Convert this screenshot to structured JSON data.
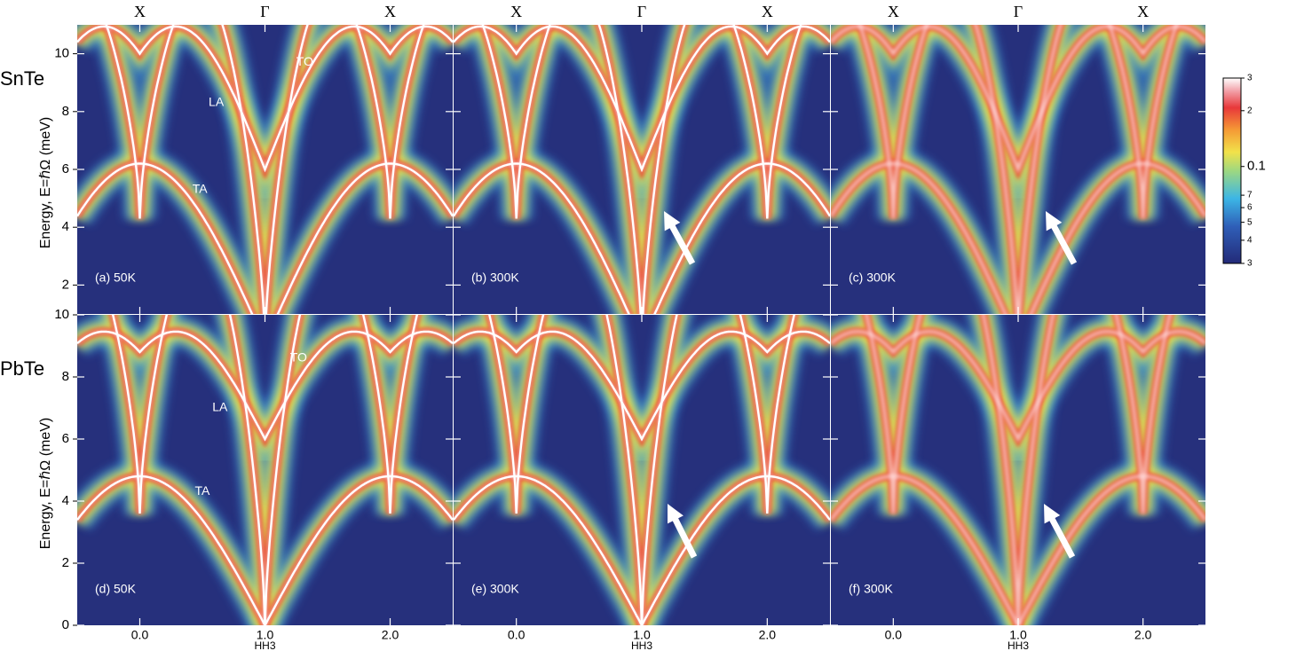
{
  "chart_data": [
    {
      "type": "heatmap",
      "panel_label": "(a) 50K",
      "row_label": "SnTe",
      "ylabel": "Energy, E=ℏΩ (meV)",
      "symmetry_labels": [
        "X",
        "Γ",
        "X"
      ],
      "annotations": [
        "TO",
        "LA",
        "TA"
      ],
      "xlim": [
        -0.5,
        2.5
      ],
      "ylim": [
        1,
        11
      ],
      "xticks": [
        0,
        1,
        2
      ],
      "yticks": [
        2,
        4,
        6,
        8,
        10
      ],
      "y_tick_labels": true,
      "dispersion_lines": true
    },
    {
      "type": "heatmap",
      "panel_label": "(b) 300K",
      "symmetry_labels": [
        "X",
        "Γ",
        "X"
      ],
      "xlim": [
        -0.5,
        2.5
      ],
      "ylim": [
        1,
        11
      ],
      "xticks": [
        0,
        1,
        2
      ],
      "yticks": [
        2,
        4,
        6,
        8,
        10
      ],
      "y_tick_labels": false,
      "dispersion_lines": true
    },
    {
      "type": "heatmap",
      "panel_label": "(c) 300K",
      "symmetry_labels": [
        "X",
        "Γ",
        "X"
      ],
      "xlim": [
        -0.5,
        2.5
      ],
      "ylim": [
        1,
        11
      ],
      "xticks": [
        0,
        1,
        2
      ],
      "yticks": [
        2,
        4,
        6,
        8,
        10
      ],
      "y_tick_labels": false,
      "dispersion_lines": false
    },
    {
      "type": "heatmap",
      "panel_label": "(d) 50K",
      "row_label": "PbTe",
      "ylabel": "Energy, E=ℏΩ (meV)",
      "xlabel": "HH3",
      "annotations": [
        "TO",
        "LA",
        "TA"
      ],
      "xlim": [
        -0.5,
        2.5
      ],
      "ylim": [
        0,
        10
      ],
      "xticks": [
        {
          "value": 0,
          "label": "0.0"
        },
        {
          "value": 1,
          "label": "1.0"
        },
        {
          "value": 2,
          "label": "2.0"
        }
      ],
      "yticks": [
        0,
        2,
        4,
        6,
        8,
        10
      ],
      "y_tick_labels": true,
      "dispersion_lines": true
    },
    {
      "type": "heatmap",
      "panel_label": "(e) 300K",
      "xlabel": "HH3",
      "xlim": [
        -0.5,
        2.5
      ],
      "ylim": [
        0,
        10
      ],
      "xticks": [
        {
          "value": 0,
          "label": "0.0"
        },
        {
          "value": 1,
          "label": "1.0"
        },
        {
          "value": 2,
          "label": "2.0"
        }
      ],
      "yticks": [
        0,
        2,
        4,
        6,
        8,
        10
      ],
      "y_tick_labels": false,
      "dispersion_lines": true
    },
    {
      "type": "heatmap",
      "panel_label": "(f) 300K",
      "xlabel": "HH3",
      "xlim": [
        -0.5,
        2.5
      ],
      "ylim": [
        0,
        10
      ],
      "xticks": [
        {
          "value": 0,
          "label": "0.0"
        },
        {
          "value": 1,
          "label": "1.0"
        },
        {
          "value": 2,
          "label": "2.0"
        }
      ],
      "yticks": [
        0,
        2,
        4,
        6,
        8,
        10
      ],
      "y_tick_labels": false,
      "dispersion_lines": false
    }
  ],
  "colorbar": {
    "clim": [
      0.03,
      0.3
    ],
    "log": true,
    "ticks": [
      {
        "value": 0.3,
        "label": "3"
      },
      {
        "value": 0.2,
        "label": "2"
      },
      0.1,
      {
        "value": 0.07,
        "label": "7"
      },
      {
        "value": 0.06,
        "label": "6"
      },
      {
        "value": 0.05,
        "label": "5"
      },
      {
        "value": 0.04,
        "label": "4"
      },
      {
        "value": 0.03,
        "label": "3"
      }
    ]
  }
}
